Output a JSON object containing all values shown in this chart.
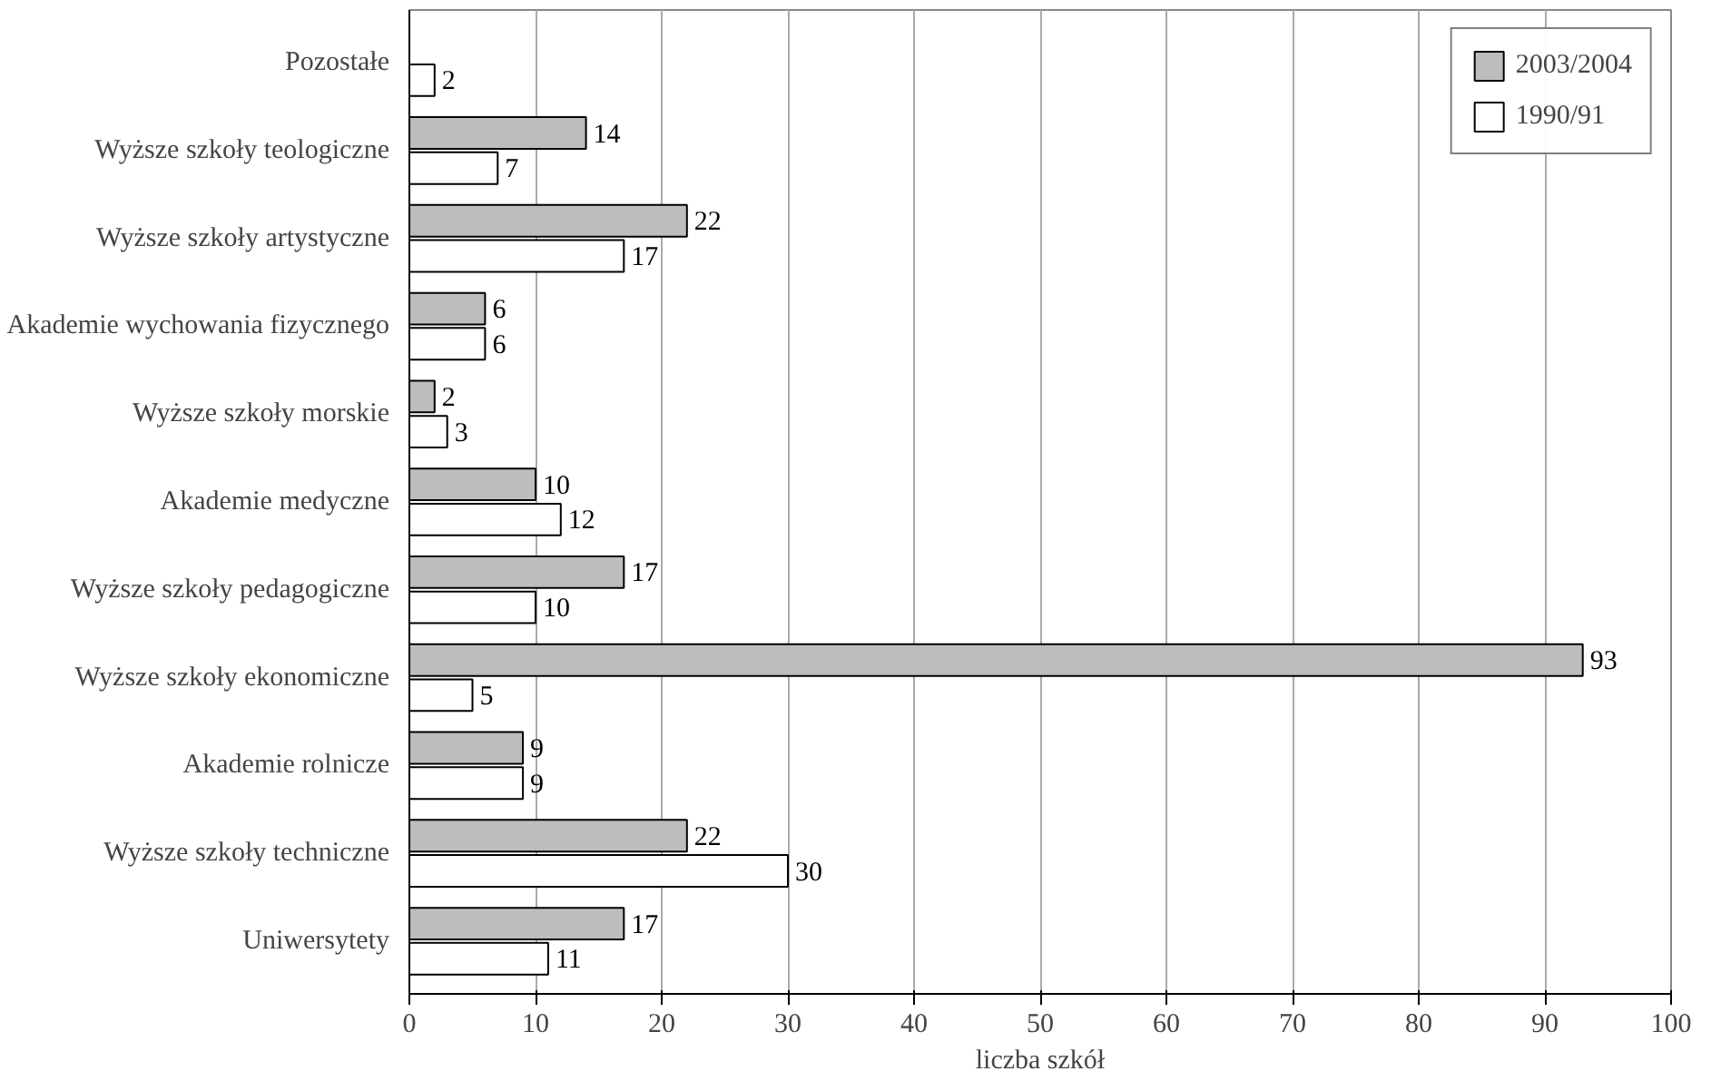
{
  "chart_data": {
    "type": "bar",
    "orientation": "horizontal",
    "xlabel": "liczba szkół",
    "categories": [
      "Pozostałe",
      "Wyższe szkoły teologiczne",
      "Wyższe szkoły artystyczne",
      "Akademie wychowania fizycznego",
      "Wyższe szkoły morskie",
      "Akademie medyczne",
      "Wyższe szkoły pedagogiczne",
      "Wyższe szkoły ekonomiczne",
      "Akademie rolnicze",
      "Wyższe szkoły techniczne",
      "Uniwersytety"
    ],
    "series": [
      {
        "name": "2003/2004",
        "color": "#bdbdbd",
        "values": [
          null,
          14,
          22,
          6,
          2,
          10,
          17,
          93,
          9,
          22,
          17
        ]
      },
      {
        "name": "1990/91",
        "color": "#ffffff",
        "values": [
          2,
          7,
          17,
          6,
          3,
          12,
          10,
          5,
          9,
          30,
          11
        ]
      }
    ],
    "xlim": [
      0,
      100
    ],
    "xticks": [
      0,
      10,
      20,
      30,
      40,
      50,
      60,
      70,
      80,
      90,
      100
    ],
    "grid": "x",
    "legend": "top right",
    "data_labels": true
  }
}
